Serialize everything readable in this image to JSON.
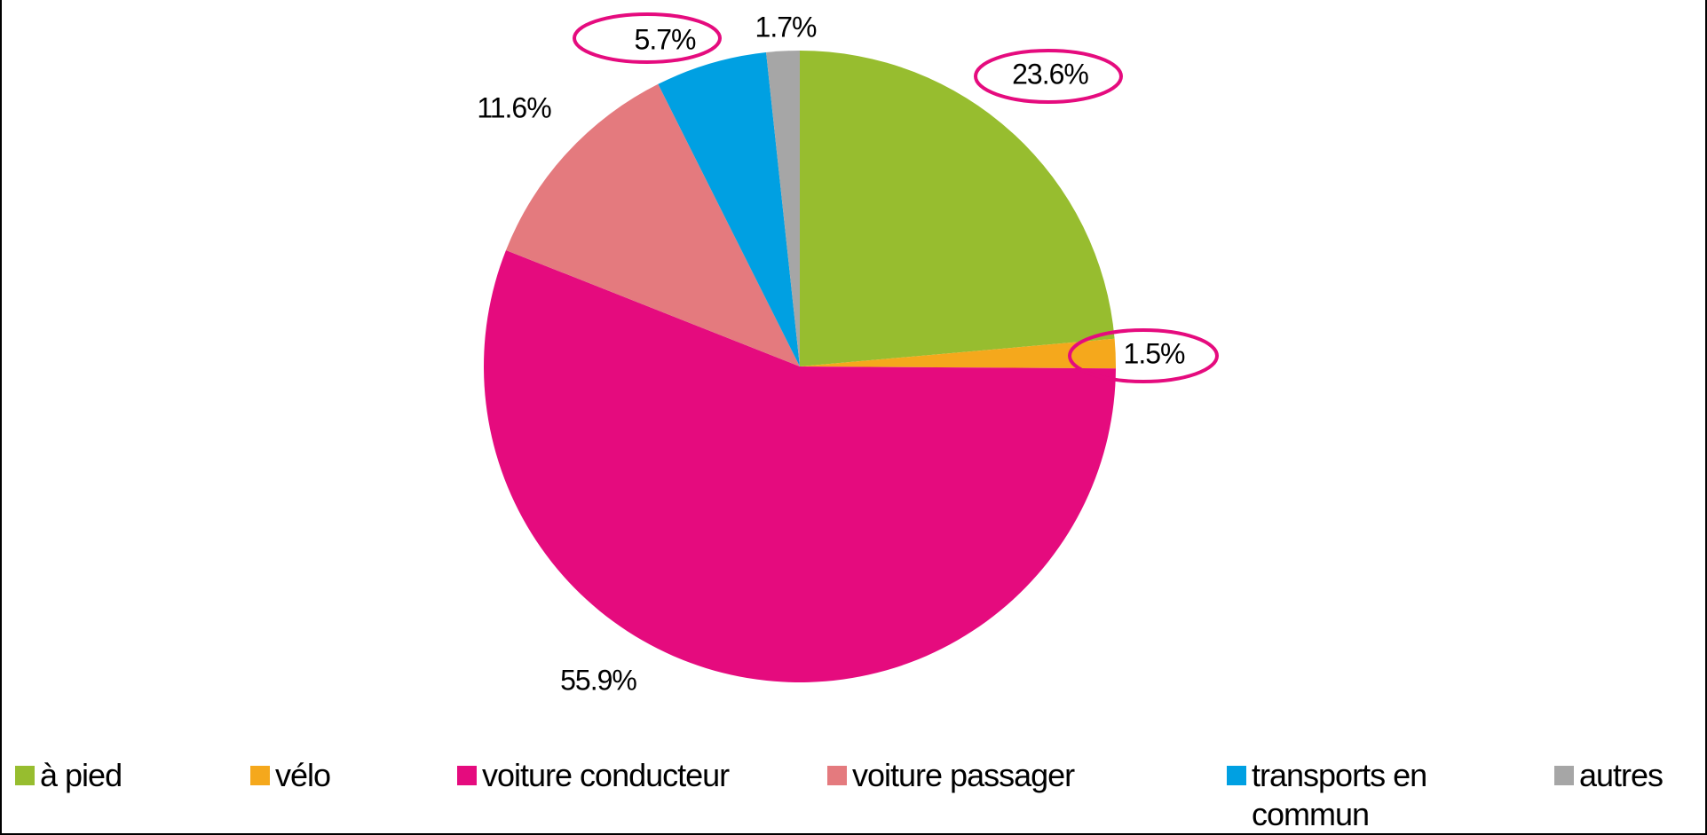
{
  "chart_data": {
    "type": "pie",
    "categories": [
      "à pied",
      "vélo",
      "voiture conducteur",
      "voiture passager",
      "transports en commun",
      "autres"
    ],
    "values": [
      23.6,
      1.5,
      55.9,
      11.6,
      5.7,
      1.7
    ],
    "value_labels": [
      "23.6%",
      "1.5%",
      "55.9%",
      "11.6%",
      "5.7%",
      "1.7%"
    ],
    "colors": [
      "#97bd2f",
      "#f5a81c",
      "#e50b7e",
      "#e47a7e",
      "#00a0e2",
      "#a6a6a6"
    ],
    "legend": "bottom"
  }
}
